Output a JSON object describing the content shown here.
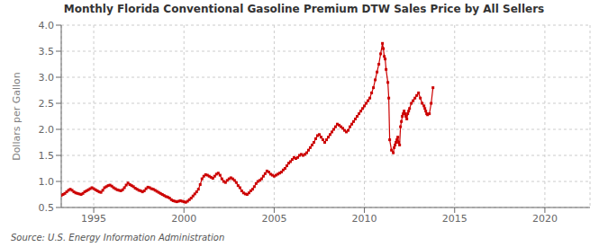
{
  "chart_data": {
    "type": "line",
    "title": "Monthly Florida Conventional Gasoline Premium DTW Sales Price by All Sellers",
    "ylabel": "Dollars per Gallon",
    "source": "Source: U.S. Energy Information Administration",
    "color": "#cc0000",
    "marker": "square",
    "grid": true,
    "xlim": [
      1993.2,
      2022.5
    ],
    "xticks": [
      1995,
      2000,
      2005,
      2010,
      2015,
      2020
    ],
    "ylim": [
      0.5,
      4.0
    ],
    "yticks": [
      0.5,
      {
        "value": 1.0,
        "label": "1.0"
      },
      1.5,
      {
        "value": 2.0,
        "label": "2.0"
      },
      2.5,
      {
        "value": 3.0,
        "label": "3.0"
      },
      3.5,
      {
        "value": 4.0,
        "label": "4.0"
      }
    ],
    "x": [
      1993.2,
      1993.3,
      1993.4,
      1993.5,
      1993.6,
      1993.7,
      1993.8,
      1993.9,
      1994.0,
      1994.1,
      1994.2,
      1994.3,
      1994.4,
      1994.5,
      1994.6,
      1994.7,
      1994.8,
      1994.9,
      1995.0,
      1995.1,
      1995.2,
      1995.3,
      1995.4,
      1995.5,
      1995.6,
      1995.7,
      1995.8,
      1995.9,
      1996.0,
      1996.1,
      1996.2,
      1996.3,
      1996.4,
      1996.5,
      1996.6,
      1996.7,
      1996.8,
      1996.9,
      1997.0,
      1997.1,
      1997.2,
      1997.3,
      1997.4,
      1997.5,
      1997.6,
      1997.7,
      1997.8,
      1997.9,
      1998.0,
      1998.1,
      1998.2,
      1998.3,
      1998.4,
      1998.5,
      1998.6,
      1998.7,
      1998.8,
      1998.9,
      1999.0,
      1999.1,
      1999.2,
      1999.3,
      1999.4,
      1999.5,
      1999.6,
      1999.7,
      1999.8,
      1999.9,
      2000.0,
      2000.1,
      2000.2,
      2000.3,
      2000.4,
      2000.5,
      2000.6,
      2000.7,
      2000.8,
      2000.9,
      2001.0,
      2001.1,
      2001.2,
      2001.3,
      2001.4,
      2001.5,
      2001.6,
      2001.7,
      2001.8,
      2001.9,
      2002.0,
      2002.1,
      2002.2,
      2002.3,
      2002.4,
      2002.5,
      2002.6,
      2002.7,
      2002.8,
      2002.9,
      2003.0,
      2003.1,
      2003.2,
      2003.3,
      2003.4,
      2003.5,
      2003.6,
      2003.7,
      2003.8,
      2003.9,
      2004.0,
      2004.1,
      2004.2,
      2004.3,
      2004.4,
      2004.5,
      2004.6,
      2004.7,
      2004.8,
      2004.9,
      2005.0,
      2005.1,
      2005.2,
      2005.3,
      2005.4,
      2005.5,
      2005.6,
      2005.7,
      2005.8,
      2005.9,
      2006.0,
      2006.1,
      2006.2,
      2006.3,
      2006.4,
      2006.5,
      2006.6,
      2006.7,
      2006.8,
      2006.9,
      2007.0,
      2007.1,
      2007.2,
      2007.3,
      2007.4,
      2007.5,
      2007.6,
      2007.7,
      2007.8,
      2007.9,
      2008.0,
      2008.1,
      2008.2,
      2008.3,
      2008.4,
      2008.5,
      2008.6,
      2008.7,
      2008.8,
      2008.9,
      2009.0,
      2009.1,
      2009.2,
      2009.3,
      2009.4,
      2009.5,
      2009.6,
      2009.7,
      2009.8,
      2009.9,
      2010.0,
      2010.1,
      2010.2,
      2010.3,
      2010.4,
      2010.5,
      2010.6,
      2010.7,
      2010.8,
      2010.9,
      2011.0,
      2011.05,
      2011.1,
      2011.15,
      2011.2,
      2011.3,
      2011.35,
      2011.4,
      2011.5,
      2011.6,
      2011.65,
      2011.7,
      2011.75,
      2011.8,
      2011.85,
      2011.9,
      2011.95,
      2012.0,
      2012.05,
      2012.1,
      2012.15,
      2012.2,
      2012.25,
      2012.3,
      2012.35,
      2012.4,
      2012.45,
      2012.5,
      2012.6,
      2012.7,
      2012.8,
      2012.9,
      2013.0,
      2013.1,
      2013.2,
      2013.3,
      2013.35,
      2013.4,
      2013.45,
      2013.5,
      2013.6,
      2013.7,
      2013.8
    ],
    "values": [
      0.73,
      0.75,
      0.77,
      0.8,
      0.83,
      0.85,
      0.83,
      0.8,
      0.78,
      0.77,
      0.76,
      0.75,
      0.77,
      0.8,
      0.82,
      0.84,
      0.86,
      0.88,
      0.86,
      0.84,
      0.82,
      0.8,
      0.79,
      0.83,
      0.88,
      0.9,
      0.92,
      0.93,
      0.91,
      0.88,
      0.86,
      0.84,
      0.83,
      0.82,
      0.84,
      0.88,
      0.93,
      0.97,
      0.94,
      0.92,
      0.9,
      0.87,
      0.85,
      0.83,
      0.82,
      0.8,
      0.82,
      0.86,
      0.89,
      0.88,
      0.86,
      0.85,
      0.83,
      0.81,
      0.79,
      0.77,
      0.75,
      0.73,
      0.71,
      0.7,
      0.68,
      0.65,
      0.63,
      0.62,
      0.61,
      0.62,
      0.63,
      0.62,
      0.61,
      0.6,
      0.62,
      0.65,
      0.68,
      0.72,
      0.76,
      0.8,
      0.85,
      0.94,
      1.05,
      1.1,
      1.13,
      1.12,
      1.1,
      1.08,
      1.06,
      1.1,
      1.14,
      1.16,
      1.12,
      1.05,
      1.0,
      0.98,
      1.02,
      1.05,
      1.07,
      1.05,
      1.02,
      0.98,
      0.92,
      0.88,
      0.82,
      0.78,
      0.76,
      0.75,
      0.78,
      0.82,
      0.85,
      0.9,
      0.96,
      1.0,
      1.02,
      1.05,
      1.1,
      1.15,
      1.2,
      1.18,
      1.14,
      1.12,
      1.1,
      1.12,
      1.14,
      1.16,
      1.18,
      1.22,
      1.25,
      1.3,
      1.35,
      1.38,
      1.42,
      1.46,
      1.44,
      1.46,
      1.5,
      1.52,
      1.5,
      1.52,
      1.55,
      1.6,
      1.65,
      1.7,
      1.75,
      1.82,
      1.88,
      1.9,
      1.85,
      1.8,
      1.75,
      1.8,
      1.85,
      1.9,
      1.95,
      2.0,
      2.05,
      2.1,
      2.08,
      2.05,
      2.02,
      1.98,
      1.95,
      1.98,
      2.05,
      2.1,
      2.15,
      2.2,
      2.25,
      2.3,
      2.35,
      2.4,
      2.45,
      2.5,
      2.55,
      2.6,
      2.7,
      2.8,
      2.95,
      3.1,
      3.25,
      3.45,
      3.65,
      3.55,
      3.4,
      3.35,
      3.15,
      2.9,
      2.6,
      1.8,
      1.6,
      1.55,
      1.65,
      1.7,
      1.75,
      1.8,
      1.85,
      1.75,
      1.7,
      2.05,
      2.15,
      2.25,
      2.3,
      2.35,
      2.3,
      2.25,
      2.2,
      2.3,
      2.35,
      2.4,
      2.5,
      2.55,
      2.6,
      2.65,
      2.7,
      2.6,
      2.5,
      2.45,
      2.4,
      2.35,
      2.3,
      2.28,
      2.3,
      2.5,
      2.8
    ]
  }
}
